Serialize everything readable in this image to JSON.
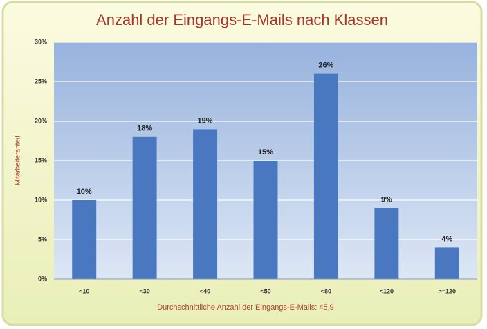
{
  "chart_data": {
    "type": "bar",
    "title": "Anzahl der Eingangs-E-Mails nach Klassen",
    "x_label": "Durchschnittliche Anzahl der Eingangs-E-Mails: 45,9",
    "y_label": "Mitarbeiteranteil",
    "categories": [
      "<10",
      "<30",
      "<40",
      "<50",
      "<80",
      "<120",
      ">=120"
    ],
    "values": [
      10,
      18,
      19,
      15,
      26,
      9,
      4
    ],
    "value_labels": [
      "10%",
      "18%",
      "19%",
      "15%",
      "26%",
      "9%",
      "4%"
    ],
    "color": "#4a78c0",
    "ylim": [
      0,
      30
    ],
    "yticks": [
      {
        "value": 0,
        "label": "0%"
      },
      {
        "value": 5,
        "label": "5%"
      },
      {
        "value": 10,
        "label": "10%"
      },
      {
        "value": 15,
        "label": "15%"
      },
      {
        "value": 20,
        "label": "20%"
      },
      {
        "value": 25,
        "label": "25%"
      },
      {
        "value": 30,
        "label": "30%"
      }
    ],
    "grid": true
  }
}
